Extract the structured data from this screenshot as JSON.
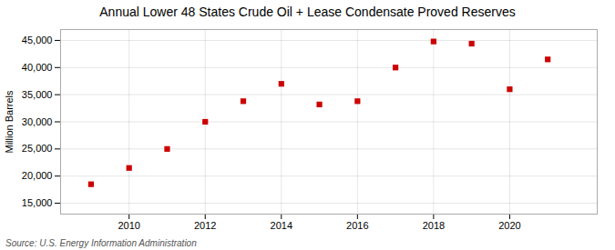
{
  "chart_data": {
    "type": "scatter",
    "title": "Annual Lower 48 States Crude Oil + Lease Condensate Proved Reserves",
    "ylabel": "Million Barrels",
    "source": "Source: U.S. Energy Information Administration",
    "x": [
      2009,
      2010,
      2011,
      2012,
      2013,
      2014,
      2015,
      2016,
      2017,
      2018,
      2019,
      2020,
      2021
    ],
    "values": [
      18500,
      21500,
      25000,
      30000,
      33800,
      37000,
      33200,
      33800,
      40000,
      44800,
      44400,
      36000,
      41500
    ],
    "color": "#cc0000",
    "marker": "square",
    "xlim": [
      2008.2,
      2022.3
    ],
    "xticks": [
      2010,
      2012,
      2014,
      2016,
      2018,
      2020
    ],
    "ylim": [
      13000,
      47000
    ],
    "yticks": [
      {
        "value": 15000,
        "label": "15,000"
      },
      {
        "value": 20000,
        "label": "20,000"
      },
      {
        "value": 25000,
        "label": "25,000"
      },
      {
        "value": 30000,
        "label": "30,000"
      },
      {
        "value": 35000,
        "label": "35,000"
      },
      {
        "value": 40000,
        "label": "40,000"
      },
      {
        "value": 45000,
        "label": "45,000"
      }
    ],
    "grid": true
  }
}
